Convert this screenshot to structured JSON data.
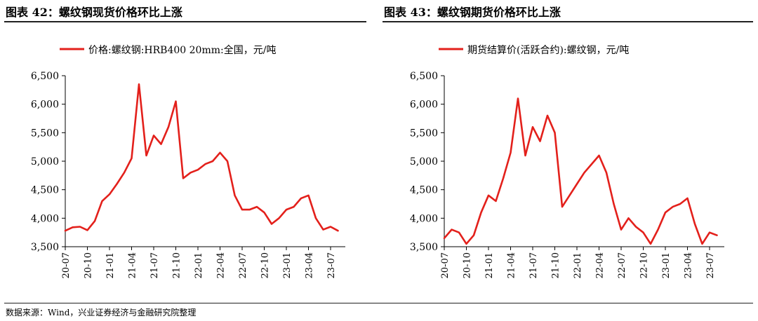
{
  "source_note": "数据来源：Wind，兴业证券经济与金融研究院整理",
  "accent_color": "#e3201b",
  "chart_data": [
    {
      "type": "line",
      "title": "图表 42：螺纹钢现货价格环比上涨",
      "legend_position": "top",
      "ylim": [
        3500,
        6500
      ],
      "yticks": [
        "3,500",
        "4,000",
        "4,500",
        "5,000",
        "5,500",
        "6,000",
        "6,500"
      ],
      "ytick_values": [
        3500,
        4000,
        4500,
        5000,
        5500,
        6000,
        6500
      ],
      "xticks": [
        "20-07",
        "20-10",
        "21-01",
        "21-04",
        "21-07",
        "21-10",
        "22-01",
        "22-04",
        "22-07",
        "22-10",
        "23-01",
        "23-04",
        "23-07"
      ],
      "xlim": [
        "2020-07",
        "2023-09"
      ],
      "series": [
        {
          "name": "价格:螺纹钢:HRB400 20mm:全国，元/吨",
          "color": "#e3201b",
          "x": [
            "2020-07",
            "2020-08",
            "2020-09",
            "2020-10",
            "2020-11",
            "2020-12",
            "2021-01",
            "2021-02",
            "2021-03",
            "2021-04",
            "2021-05",
            "2021-06",
            "2021-07",
            "2021-08",
            "2021-09",
            "2021-10",
            "2021-11",
            "2021-12",
            "2022-01",
            "2022-02",
            "2022-03",
            "2022-04",
            "2022-05",
            "2022-06",
            "2022-07",
            "2022-08",
            "2022-09",
            "2022-10",
            "2022-11",
            "2022-12",
            "2023-01",
            "2023-02",
            "2023-03",
            "2023-04",
            "2023-05",
            "2023-06",
            "2023-07",
            "2023-08"
          ],
          "values": [
            3780,
            3840,
            3850,
            3790,
            3950,
            4300,
            4420,
            4600,
            4800,
            5050,
            6350,
            5100,
            5450,
            5300,
            5600,
            6050,
            4700,
            4800,
            4850,
            4950,
            5000,
            5150,
            5000,
            4400,
            4150,
            4150,
            4200,
            4100,
            3900,
            4000,
            4150,
            4200,
            4350,
            4400,
            4000,
            3800,
            3850,
            3780
          ]
        }
      ]
    },
    {
      "type": "line",
      "title": "图表 43：螺纹钢期货价格环比上涨",
      "legend_position": "top",
      "ylim": [
        3500,
        6500
      ],
      "yticks": [
        "3,500",
        "4,000",
        "4,500",
        "5,000",
        "5,500",
        "6,000",
        "6,500"
      ],
      "ytick_values": [
        3500,
        4000,
        4500,
        5000,
        5500,
        6000,
        6500
      ],
      "xticks": [
        "20-07",
        "20-10",
        "21-01",
        "21-04",
        "21-07",
        "21-10",
        "22-01",
        "22-04",
        "22-07",
        "22-10",
        "23-01",
        "23-04",
        "23-07"
      ],
      "xlim": [
        "2020-07",
        "2023-09"
      ],
      "series": [
        {
          "name": "期货结算价(活跃合约):螺纹钢，元/吨",
          "color": "#e3201b",
          "x": [
            "2020-07",
            "2020-08",
            "2020-09",
            "2020-10",
            "2020-11",
            "2020-12",
            "2021-01",
            "2021-02",
            "2021-03",
            "2021-04",
            "2021-05",
            "2021-06",
            "2021-07",
            "2021-08",
            "2021-09",
            "2021-10",
            "2021-11",
            "2021-12",
            "2022-01",
            "2022-02",
            "2022-03",
            "2022-04",
            "2022-05",
            "2022-06",
            "2022-07",
            "2022-08",
            "2022-09",
            "2022-10",
            "2022-11",
            "2022-12",
            "2023-01",
            "2023-02",
            "2023-03",
            "2023-04",
            "2023-05",
            "2023-06",
            "2023-07",
            "2023-08"
          ],
          "values": [
            3650,
            3800,
            3750,
            3550,
            3700,
            4100,
            4400,
            4300,
            4700,
            5150,
            6100,
            5100,
            5600,
            5350,
            5800,
            5500,
            4200,
            4400,
            4600,
            4800,
            4950,
            5100,
            4800,
            4250,
            3800,
            4000,
            3850,
            3750,
            3550,
            3800,
            4100,
            4200,
            4250,
            4350,
            3900,
            3550,
            3750,
            3700
          ]
        }
      ]
    }
  ]
}
